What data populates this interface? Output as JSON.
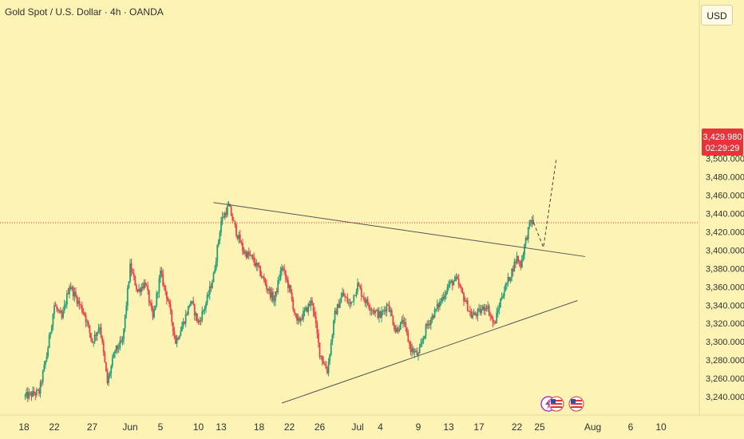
{
  "header": {
    "title": "Gold Spot / U.S. Dollar · 4h · OANDA",
    "currency_button": "USD"
  },
  "price_tag": {
    "price": "3,429.980",
    "countdown": "02:29:29",
    "color": "#e8323c"
  },
  "colors": {
    "background": "#fdf3b4",
    "up_candle": "#22a07a",
    "down_candle": "#e8414a",
    "trendline": "#555555",
    "projection": "#444444"
  },
  "icons": [
    "lightning-flag-icon",
    "us-flag-icon",
    "us-flag-icon"
  ],
  "chart_data": {
    "type": "candlestick",
    "y_axis": {
      "min": 3230,
      "max": 3510,
      "ticks": [
        3240,
        3260,
        3280,
        3300,
        3320,
        3340,
        3360,
        3380,
        3400,
        3420,
        3440,
        3460,
        3480,
        3500
      ],
      "tick_labels": [
        "3,240.000",
        "3,260.000",
        "3,280.000",
        "3,300.000",
        "3,320.000",
        "3,340.000",
        "3,360.000",
        "3,380.000",
        "3,400.000",
        "3,420.000",
        "3,440.000",
        "3,460.000",
        "3,480.000",
        "3,500.000"
      ]
    },
    "x_axis": {
      "labels": [
        {
          "label": "18",
          "day": 0
        },
        {
          "label": "22",
          "day": 4
        },
        {
          "label": "27",
          "day": 9
        },
        {
          "label": "Jun",
          "day": 14
        },
        {
          "label": "5",
          "day": 18
        },
        {
          "label": "10",
          "day": 23
        },
        {
          "label": "13",
          "day": 26
        },
        {
          "label": "18",
          "day": 31
        },
        {
          "label": "22",
          "day": 35
        },
        {
          "label": "26",
          "day": 39
        },
        {
          "label": "Jul",
          "day": 44
        },
        {
          "label": "4",
          "day": 47
        },
        {
          "label": "9",
          "day": 52
        },
        {
          "label": "13",
          "day": 56
        },
        {
          "label": "17",
          "day": 60
        },
        {
          "label": "22",
          "day": 65
        },
        {
          "label": "25",
          "day": 68
        },
        {
          "label": "Aug",
          "day": 75
        },
        {
          "label": "6",
          "day": 80
        },
        {
          "label": "10",
          "day": 84
        }
      ]
    },
    "price_path": [
      [
        0,
        3240
      ],
      [
        2,
        3245
      ],
      [
        3,
        3285
      ],
      [
        4,
        3340
      ],
      [
        5,
        3325
      ],
      [
        6,
        3362
      ],
      [
        8,
        3330
      ],
      [
        9,
        3300
      ],
      [
        10,
        3318
      ],
      [
        11,
        3255
      ],
      [
        12,
        3290
      ],
      [
        13,
        3300
      ],
      [
        14,
        3382
      ],
      [
        15,
        3355
      ],
      [
        16,
        3365
      ],
      [
        17,
        3325
      ],
      [
        18,
        3375
      ],
      [
        19,
        3345
      ],
      [
        20,
        3300
      ],
      [
        21,
        3320
      ],
      [
        22,
        3345
      ],
      [
        23,
        3320
      ],
      [
        24,
        3342
      ],
      [
        25,
        3372
      ],
      [
        26,
        3432
      ],
      [
        27,
        3448
      ],
      [
        28,
        3420
      ],
      [
        29,
        3398
      ],
      [
        30,
        3392
      ],
      [
        31,
        3378
      ],
      [
        32,
        3360
      ],
      [
        33,
        3345
      ],
      [
        34,
        3382
      ],
      [
        35,
        3358
      ],
      [
        36,
        3320
      ],
      [
        37,
        3332
      ],
      [
        38,
        3345
      ],
      [
        39,
        3288
      ],
      [
        40,
        3268
      ],
      [
        41,
        3330
      ],
      [
        42,
        3352
      ],
      [
        43,
        3340
      ],
      [
        44,
        3362
      ],
      [
        45,
        3345
      ],
      [
        46,
        3335
      ],
      [
        47,
        3328
      ],
      [
        48,
        3342
      ],
      [
        49,
        3312
      ],
      [
        50,
        3322
      ],
      [
        51,
        3292
      ],
      [
        52,
        3285
      ],
      [
        53,
        3315
      ],
      [
        54,
        3330
      ],
      [
        55,
        3345
      ],
      [
        56,
        3362
      ],
      [
        57,
        3368
      ],
      [
        58,
        3348
      ],
      [
        59,
        3328
      ],
      [
        60,
        3332
      ],
      [
        61,
        3340
      ],
      [
        62,
        3318
      ],
      [
        63,
        3350
      ],
      [
        64,
        3370
      ],
      [
        65,
        3392
      ],
      [
        65.5,
        3384
      ],
      [
        66,
        3405
      ],
      [
        66.8,
        3432
      ],
      [
        67.2,
        3430
      ]
    ],
    "last_price": 3429.98,
    "trendlines": [
      {
        "name": "resistance",
        "points": [
          [
            25,
            3452
          ],
          [
            74,
            3393
          ]
        ]
      },
      {
        "name": "support",
        "points": [
          [
            34,
            3233
          ],
          [
            73,
            3345
          ]
        ]
      }
    ],
    "projection": [
      [
        67.2,
        3430
      ],
      [
        68.5,
        3403
      ],
      [
        70.2,
        3500
      ]
    ]
  }
}
